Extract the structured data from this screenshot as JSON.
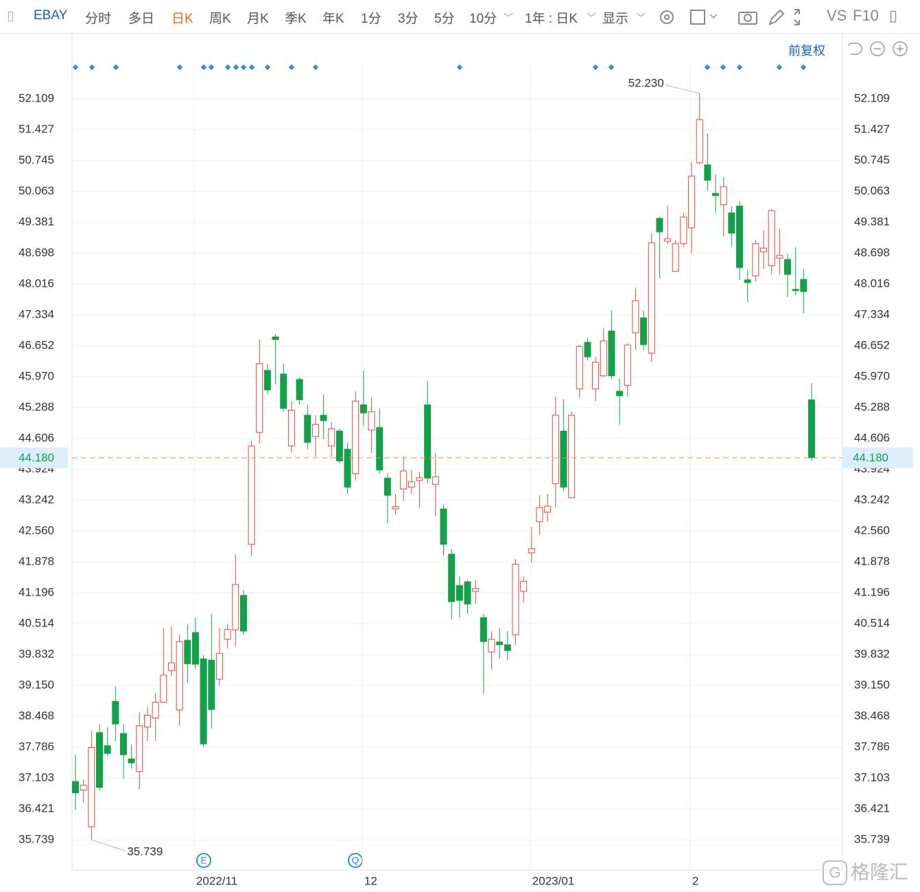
{
  "toolbar": {
    "symbol": "EBAY",
    "items": [
      "分时",
      "多日",
      "日K",
      "周K",
      "月K",
      "季K",
      "年K",
      "1分",
      "3分",
      "5分",
      "10分",
      "1年 : 日K",
      "显示",
      "VS",
      "F10"
    ],
    "adjust": "前复权"
  },
  "watermark": "格隆汇",
  "chart_data": {
    "type": "candlestick",
    "categories": [
      null,
      null,
      null,
      null,
      null,
      null,
      null,
      null,
      null,
      null,
      null,
      null,
      null,
      null,
      null,
      "2022/11",
      null,
      null,
      null,
      null,
      null,
      null,
      null,
      null,
      null,
      null,
      null,
      null,
      null,
      null,
      null,
      null,
      null,
      null,
      null,
      null,
      "12",
      null,
      null,
      null,
      null,
      null,
      null,
      null,
      null,
      null,
      null,
      null,
      null,
      null,
      null,
      null,
      null,
      null,
      null,
      null,
      null,
      "2023/01",
      null,
      null,
      null,
      null,
      null,
      null,
      null,
      null,
      null,
      null,
      null,
      null,
      null,
      null,
      null,
      null,
      null,
      null,
      null,
      "2",
      null,
      null,
      null,
      null,
      null,
      null,
      null,
      null,
      null,
      null,
      null,
      null,
      null,
      null,
      null
    ],
    "open": [
      37.03,
      36.84,
      36.03,
      38.11,
      37.82,
      38.8,
      38.09,
      37.53,
      37.25,
      38.23,
      38.43,
      38.78,
      39.48,
      38.61,
      40.15,
      40.32,
      39.74,
      39.71,
      39.29,
      40.17,
      40.38,
      41.14,
      42.27,
      44.74,
      46.11,
      46.85,
      46.03,
      44.44,
      45.91,
      45.12,
      44.65,
      45.12,
      44.44,
      44.77,
      44.37,
      43.83,
      45.35,
      44.79,
      44.85,
      43.73,
      43.05,
      43.49,
      43.53,
      43.68,
      45.35,
      43.59,
      43.05,
      42.05,
      41.36,
      41.44,
      41.23,
      40.65,
      39.89,
      40.11,
      40.05,
      40.27,
      41.23,
      42.08,
      42.77,
      42.98,
      43.61,
      44.77,
      43.3,
      45.7,
      46.73,
      45.7,
      45.99,
      46.98,
      45.65,
      45.78,
      46.94,
      47.27,
      46.49,
      49.47,
      48.96,
      48.3,
      48.91,
      49.26,
      50.7,
      50.65,
      50.02,
      49.77,
      49.59,
      49.74,
      48.11,
      48.2,
      48.73,
      48.42,
      48.59,
      48.56,
      47.9,
      48.12,
      45.46
    ],
    "high": [
      37.62,
      37.07,
      38.15,
      38.3,
      38.23,
      39.13,
      38.3,
      37.85,
      38.56,
      38.68,
      38.98,
      40.42,
      40.45,
      40.27,
      40.5,
      40.65,
      39.82,
      40.73,
      40.42,
      40.5,
      42.05,
      41.26,
      44.55,
      46.79,
      46.26,
      46.91,
      46.26,
      45.43,
      45.96,
      45.35,
      45.12,
      45.58,
      44.97,
      44.82,
      44.52,
      45.65,
      46.11,
      45.5,
      45.27,
      43.83,
      43.38,
      44.21,
      43.91,
      43.86,
      45.88,
      44.29,
      43.15,
      42.17,
      41.56,
      41.48,
      41.48,
      40.73,
      40.35,
      40.42,
      40.35,
      41.94,
      41.56,
      42.65,
      43.35,
      43.38,
      45.53,
      45.47,
      45.2,
      46.67,
      46.83,
      46.41,
      47.05,
      47.43,
      45.93,
      46.71,
      47.93,
      47.43,
      49.14,
      49.5,
      49.74,
      48.99,
      49.59,
      50.72,
      52.23,
      51.34,
      50.43,
      50.38,
      49.74,
      49.85,
      48.34,
      48.99,
      49.21,
      49.67,
      49.24,
      48.68,
      48.84,
      48.35,
      45.83
    ],
    "low": [
      36.4,
      36.57,
      35.739,
      36.83,
      37.59,
      37.92,
      37.09,
      37.32,
      36.86,
      37.92,
      37.92,
      38.76,
      39.36,
      38.26,
      39.21,
      39.52,
      37.8,
      38.2,
      39.14,
      39.97,
      40.01,
      40.27,
      42.02,
      44.5,
      45.58,
      45.8,
      45.2,
      44.29,
      45.35,
      44.37,
      44.21,
      44.59,
      44.21,
      44.06,
      43.38,
      43.68,
      44.89,
      44.29,
      43.83,
      42.73,
      42.93,
      43.23,
      43.38,
      43.08,
      43.61,
      42.89,
      42.02,
      40.61,
      40.65,
      40.73,
      40.95,
      38.97,
      39.51,
      39.74,
      39.71,
      40.05,
      40.99,
      41.86,
      42.47,
      42.77,
      43.08,
      43.45,
      43.3,
      45.5,
      46.33,
      45.43,
      45.96,
      45.93,
      44.9,
      45.53,
      46.56,
      46.56,
      46.3,
      48.15,
      48.9,
      48.3,
      48.84,
      48.69,
      50.66,
      50.08,
      49.59,
      49.06,
      48.84,
      48.11,
      47.62,
      48.08,
      48.35,
      48.23,
      48.23,
      47.73,
      47.77,
      47.37,
      44.11
    ],
    "close": [
      36.78,
      36.95,
      37.78,
      36.9,
      37.65,
      38.3,
      37.62,
      37.44,
      38.26,
      38.49,
      38.78,
      39.38,
      39.65,
      40.12,
      39.63,
      39.62,
      37.86,
      38.62,
      39.86,
      40.39,
      41.38,
      40.35,
      44.44,
      46.26,
      45.68,
      46.79,
      45.27,
      45.23,
      45.46,
      44.52,
      44.92,
      45.0,
      44.82,
      44.11,
      43.53,
      45.43,
      45.17,
      45.2,
      43.91,
      43.35,
      43.1,
      43.89,
      43.65,
      43.74,
      43.73,
      43.76,
      42.27,
      41.0,
      41.03,
      40.95,
      41.29,
      40.12,
      40.17,
      40.05,
      39.92,
      41.83,
      41.45,
      42.17,
      43.08,
      43.11,
      45.12,
      43.53,
      45.12,
      46.64,
      46.41,
      46.29,
      46.76,
      45.99,
      45.55,
      46.67,
      47.65,
      46.68,
      48.93,
      49.17,
      49.02,
      48.91,
      49.5,
      50.4,
      51.65,
      50.31,
      49.97,
      50.17,
      49.14,
      48.38,
      48.05,
      48.91,
      48.81,
      49.64,
      48.65,
      48.23,
      47.87,
      47.85,
      44.18
    ],
    "up_color": "#e0483f",
    "down_color": "#14a04a",
    "ylim": [
      35.074,
      52.897
    ],
    "yticks": [
      52.109,
      51.427,
      50.745,
      50.063,
      49.381,
      48.698,
      48.016,
      47.334,
      46.652,
      {
        "value": 45.97,
        "label": "45.970"
      },
      45.288,
      44.606,
      43.924,
      43.242,
      {
        "value": 42.56,
        "label": "42.560"
      },
      41.878,
      41.196,
      40.514,
      39.832,
      {
        "value": 39.15,
        "label": "39.150"
      },
      38.468,
      37.786,
      37.103,
      36.421,
      35.739
    ],
    "grid": true,
    "last_price": {
      "value": 44.18,
      "label": "44.180"
    },
    "last_price_color": "#f08a3c",
    "annotations": [
      {
        "value": 52.23,
        "label": "52.230"
      },
      {
        "value": 35.739,
        "label": "35.739"
      }
    ],
    "event_badges": [
      "E",
      "Q"
    ]
  }
}
